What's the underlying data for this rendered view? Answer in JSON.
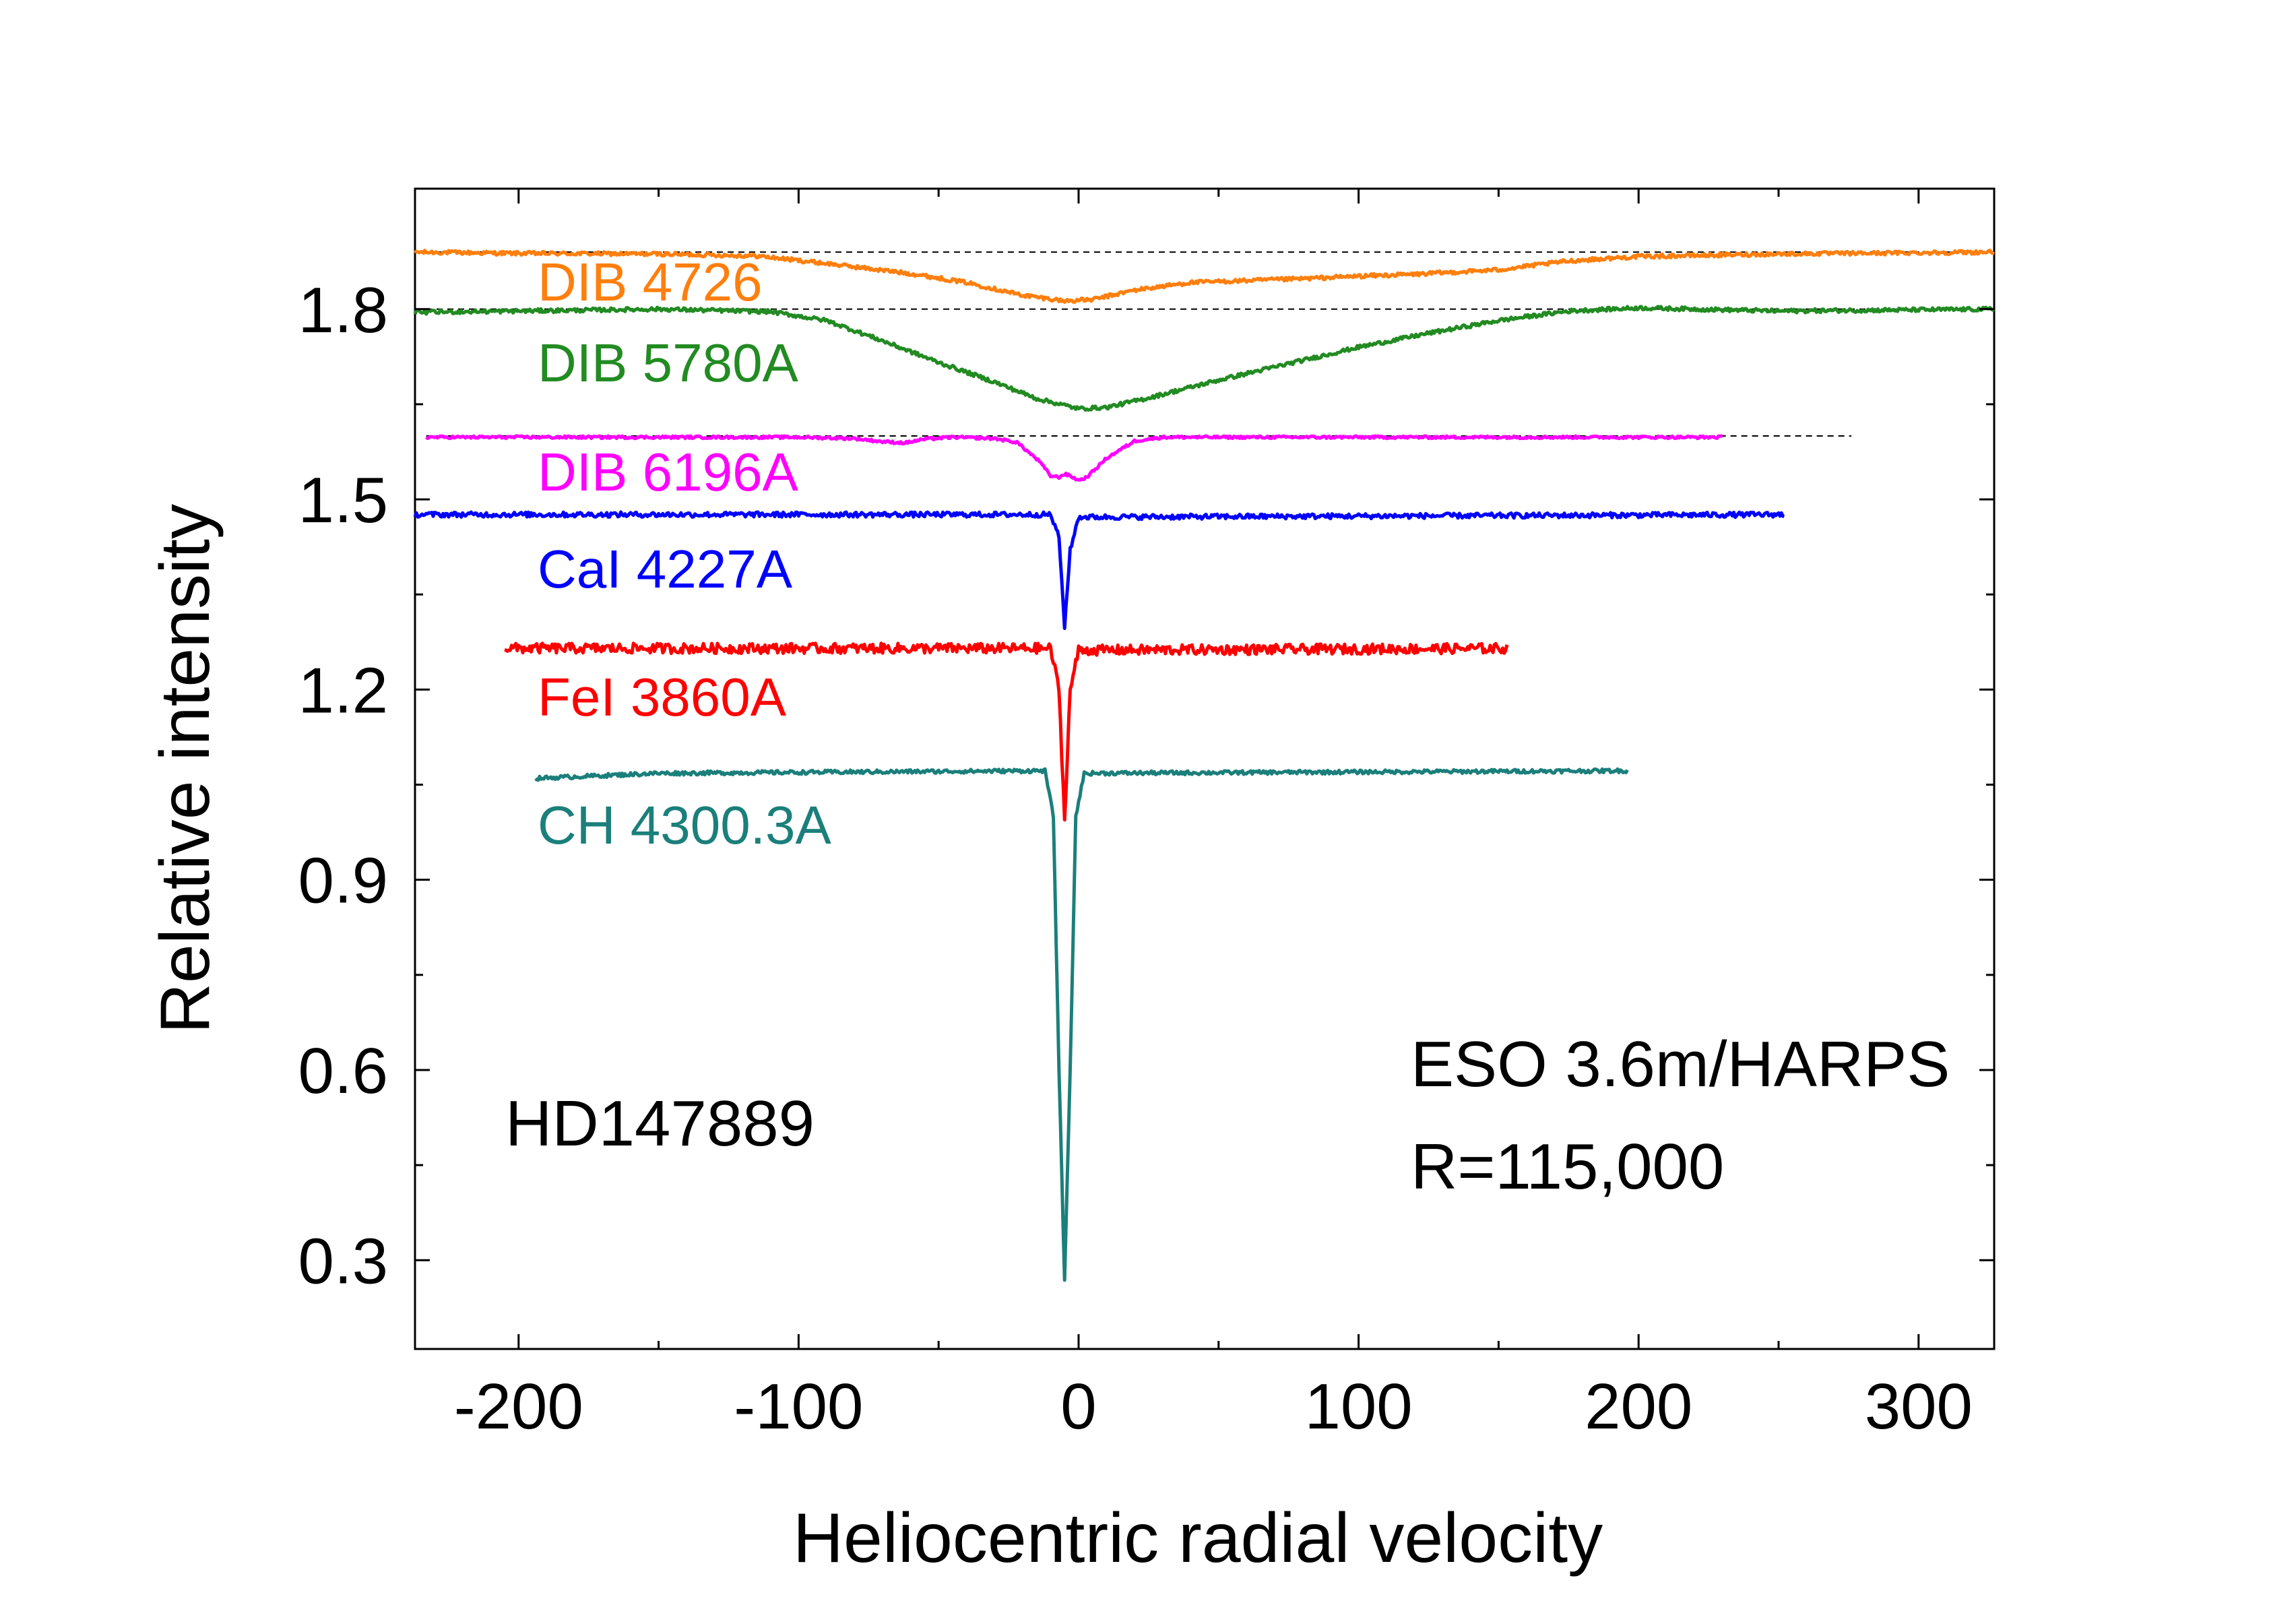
{
  "chart_data": {
    "type": "line",
    "title": "",
    "xlabel": "Heliocentric radial velocity",
    "ylabel": "Relative intensity",
    "xlim": [
      -237,
      327
    ],
    "ylim": [
      0.16,
      1.99
    ],
    "xticks": [
      -200,
      -100,
      0,
      100,
      200,
      300
    ],
    "xtick_labels": [
      "-200",
      "-100",
      "0",
      "100",
      "200",
      "300"
    ],
    "yticks": [
      0.3,
      0.6,
      0.9,
      1.2,
      1.5,
      1.8
    ],
    "ytick_labels": [
      "0.3",
      "0.6",
      "0.9",
      "1.2",
      "1.5",
      "1.8"
    ],
    "grid": false,
    "legend": "none",
    "annotations": [
      {
        "id": "star",
        "text": "HD147889"
      },
      {
        "id": "telescope",
        "text": "ESO 3.6m/HARPS"
      },
      {
        "id": "resolution",
        "text": "R=115,000"
      }
    ],
    "reference_lines": [
      {
        "y": 1.89,
        "x": [
          -237,
          327
        ]
      },
      {
        "y": 1.8,
        "x": [
          -237,
          327
        ]
      },
      {
        "y": 1.6,
        "x": [
          -233,
          276
        ]
      }
    ],
    "series": [
      {
        "name": "DIB 4726",
        "color": "#ff7f0e",
        "x_range": [
          -237,
          327
        ],
        "continuum": 1.89,
        "profile": [
          [
            -237,
            1.89
          ],
          [
            -200,
            1.888
          ],
          [
            -150,
            1.887
          ],
          [
            -115,
            1.884
          ],
          [
            -90,
            1.872
          ],
          [
            -60,
            1.856
          ],
          [
            -40,
            1.842
          ],
          [
            -20,
            1.822
          ],
          [
            -5,
            1.813
          ],
          [
            5,
            1.815
          ],
          [
            20,
            1.83
          ],
          [
            40,
            1.842
          ],
          [
            60,
            1.845
          ],
          [
            80,
            1.848
          ],
          [
            100,
            1.852
          ],
          [
            120,
            1.855
          ],
          [
            150,
            1.862
          ],
          [
            175,
            1.876
          ],
          [
            200,
            1.883
          ],
          [
            250,
            1.887
          ],
          [
            327,
            1.89
          ]
        ],
        "noise": 0.003
      },
      {
        "name": "DIB 5780A",
        "color": "#228b22",
        "x_range": [
          -237,
          327
        ],
        "continuum": 1.8,
        "profile": [
          [
            -237,
            1.795
          ],
          [
            -200,
            1.797
          ],
          [
            -150,
            1.8
          ],
          [
            -110,
            1.796
          ],
          [
            -90,
            1.782
          ],
          [
            -70,
            1.75
          ],
          [
            -50,
            1.716
          ],
          [
            -30,
            1.685
          ],
          [
            -15,
            1.659
          ],
          [
            0,
            1.643
          ],
          [
            10,
            1.645
          ],
          [
            25,
            1.66
          ],
          [
            50,
            1.688
          ],
          [
            75,
            1.714
          ],
          [
            100,
            1.74
          ],
          [
            125,
            1.762
          ],
          [
            150,
            1.782
          ],
          [
            175,
            1.797
          ],
          [
            200,
            1.802
          ],
          [
            250,
            1.797
          ],
          [
            327,
            1.8
          ]
        ],
        "noise": 0.003
      },
      {
        "name": "DIB 6196A",
        "color": "#ff00ff",
        "x_range": [
          -233,
          230
        ],
        "continuum": 1.6,
        "profile": [
          [
            -233,
            1.598
          ],
          [
            -100,
            1.598
          ],
          [
            -80,
            1.596
          ],
          [
            -70,
            1.591
          ],
          [
            -62,
            1.589
          ],
          [
            -55,
            1.595
          ],
          [
            -45,
            1.598
          ],
          [
            -30,
            1.596
          ],
          [
            -22,
            1.59
          ],
          [
            -14,
            1.56
          ],
          [
            -10,
            1.537
          ],
          [
            -7,
            1.535
          ],
          [
            -5,
            1.54
          ],
          [
            -3,
            1.537
          ],
          [
            0,
            1.53
          ],
          [
            3,
            1.535
          ],
          [
            10,
            1.565
          ],
          [
            20,
            1.592
          ],
          [
            30,
            1.598
          ],
          [
            230,
            1.598
          ]
        ],
        "noise": 0.002
      },
      {
        "name": "CaI 4227A",
        "color": "#0000ff",
        "x_range": [
          -237,
          252
        ],
        "continuum": 1.475,
        "profile": [
          [
            -237,
            1.476
          ],
          [
            -10,
            1.476
          ],
          [
            -7,
            1.44
          ],
          [
            -5,
            1.3
          ],
          [
            -3,
            1.42
          ],
          [
            0,
            1.472
          ],
          [
            252,
            1.476
          ]
        ],
        "noise": 0.004
      },
      {
        "name": "FeI 3860A",
        "color": "#ff0000",
        "x_range": [
          -205,
          153
        ],
        "continuum": 1.265,
        "profile": [
          [
            -205,
            1.265
          ],
          [
            -10,
            1.265
          ],
          [
            -7,
            1.2
          ],
          [
            -5,
            0.995
          ],
          [
            -3,
            1.2
          ],
          [
            0,
            1.262
          ],
          [
            153,
            1.265
          ]
        ],
        "noise": 0.008
      },
      {
        "name": "CH 4300.3A",
        "color": "#1b7f7b",
        "x_range": [
          -194,
          196
        ],
        "continuum": 1.072,
        "profile": [
          [
            -194,
            1.06
          ],
          [
            -150,
            1.068
          ],
          [
            -12,
            1.072
          ],
          [
            -9,
            1.0
          ],
          [
            -7,
            0.6
          ],
          [
            -5,
            0.27
          ],
          [
            -3,
            0.6
          ],
          [
            -1,
            1.0
          ],
          [
            2,
            1.068
          ],
          [
            196,
            1.072
          ]
        ],
        "noise": 0.003
      }
    ]
  }
}
